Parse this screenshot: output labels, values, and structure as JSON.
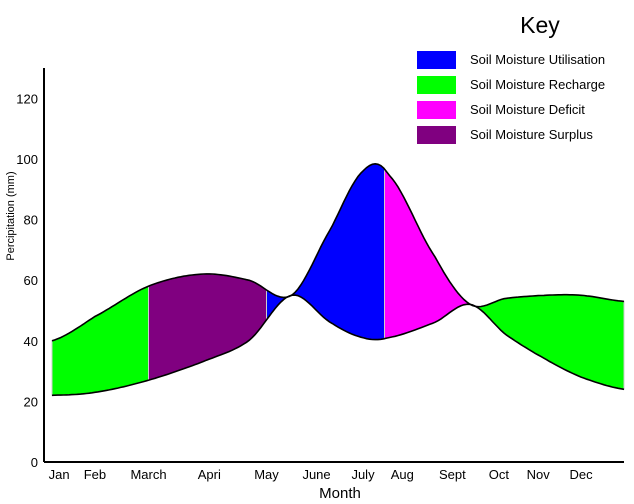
{
  "chart_data": {
    "type": "area",
    "xlabel": "Month",
    "ylabel": "Percipitation (mm)",
    "ylim": [
      0,
      130
    ],
    "yticks": [
      0,
      20,
      40,
      60,
      80,
      100,
      120
    ],
    "months": [
      "Jan",
      "Feb",
      "March",
      "Apri",
      "May",
      "June",
      "July",
      "Aug",
      "Sept",
      "Oct",
      "Nov",
      "Dec"
    ],
    "month_positions": [
      1,
      2,
      3.5,
      5.2,
      6.8,
      8.2,
      9.5,
      10.6,
      12,
      13.3,
      14.4,
      15.6
    ],
    "xlim": [
      0.8,
      16.8
    ],
    "precipitation": {
      "x": [
        0.8,
        2,
        3.5,
        5,
        6.3,
        7.5,
        8.6,
        9.5,
        10.2,
        11.5,
        12.5,
        13.5,
        14.6,
        15.6,
        16.8
      ],
      "y": [
        40,
        48,
        58,
        62,
        60,
        55,
        77,
        96,
        95,
        68,
        52,
        54,
        55,
        55,
        53
      ]
    },
    "evapotranspiration": {
      "x": [
        0.8,
        2,
        3.5,
        5,
        6.3,
        7.5,
        8.6,
        9.5,
        10.2,
        11.5,
        12.5,
        13.5,
        14.6,
        15.6,
        16.8
      ],
      "y": [
        22,
        23,
        27,
        33,
        40,
        55,
        46,
        41,
        41,
        46,
        52,
        42,
        34,
        28,
        24
      ]
    },
    "zones": [
      {
        "name": "Soil Moisture Recharge",
        "from": 0.8,
        "to": 3.5
      },
      {
        "name": "Soil Moisture Surplus",
        "from": 3.5,
        "to": 6.8
      },
      {
        "name": "Soil Moisture Utilisation",
        "from": 6.8,
        "to": 10.1
      },
      {
        "name": "Soil Moisture Deficit",
        "from": 10.1,
        "to": 12.6
      },
      {
        "name": "Soil Moisture Recharge",
        "from": 12.6,
        "to": 16.8
      }
    ]
  },
  "legend": {
    "title": "Key",
    "items": [
      {
        "label": "Soil Moisture Utilisation",
        "color": "#0000ff"
      },
      {
        "label": "Soil Moisture Recharge",
        "color": "#00ff00"
      },
      {
        "label": "Soil Moisture Deficit",
        "color": "#ff00ff"
      },
      {
        "label": "Soil Moisture Surplus",
        "color": "#800080"
      }
    ]
  },
  "colors": {
    "Soil Moisture Utilisation": "#0000ff",
    "Soil Moisture Recharge": "#00ff00",
    "Soil Moisture Deficit": "#ff00ff",
    "Soil Moisture Surplus": "#800080"
  }
}
